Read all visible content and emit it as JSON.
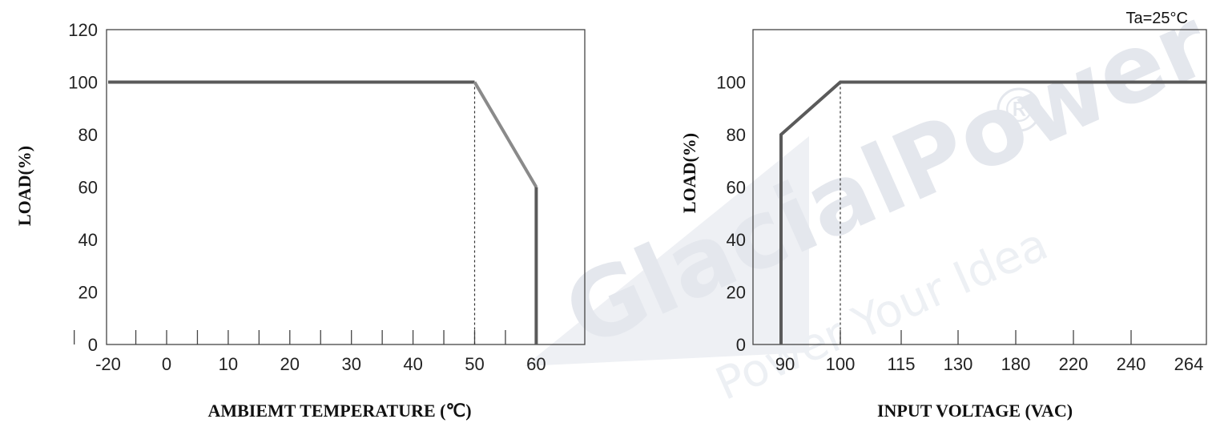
{
  "watermark": {
    "brand": "GlacialPower",
    "tagline": "Power Your Idea",
    "registered_mark": "®",
    "color": "#e6e9ef"
  },
  "chart_data": [
    {
      "type": "line",
      "title": "",
      "xlabel": "AMBIEMT TEMPERATURE (℃)",
      "ylabel": "LOAD(%)",
      "xlim": [
        -20,
        75
      ],
      "ylim": [
        0,
        120
      ],
      "x_ticks": [
        -20,
        0,
        10,
        20,
        30,
        40,
        50,
        60
      ],
      "x_tick_labels": [
        "-20",
        "0",
        "10",
        "20",
        "30",
        "40",
        "50",
        "60"
      ],
      "x_minor_ticks": [
        -15,
        -5,
        5,
        15,
        25,
        35,
        45,
        55
      ],
      "y_ticks": [
        0,
        20,
        40,
        60,
        80,
        100,
        120
      ],
      "y_tick_labels": [
        "0",
        "20",
        "40",
        "60",
        "80",
        "100",
        "120"
      ],
      "grid": false,
      "series": [
        {
          "x": [
            -20,
            50,
            60,
            60
          ],
          "y": [
            100,
            100,
            60,
            0
          ],
          "color": "#5a5a5a",
          "segment_colors": [
            "#5a5a5a",
            "#8a8a8a",
            "#5a5a5a"
          ]
        }
      ],
      "reference_lines": [
        {
          "x": 50,
          "y_from": 0,
          "y_to": 100,
          "style": "dashed"
        }
      ]
    },
    {
      "type": "line",
      "title": "",
      "xlabel": "INPUT VOLTAGE (VAC)",
      "ylabel": "LOAD(%)",
      "annotation": "Ta=25°C",
      "ylim": [
        0,
        120
      ],
      "x_tick_labels": [
        "90",
        "100",
        "115",
        "130",
        "180",
        "220",
        "240",
        "264"
      ],
      "y_ticks": [
        0,
        20,
        40,
        60,
        80,
        100
      ],
      "y_tick_labels": [
        "0",
        "20",
        "40",
        "60",
        "80",
        "100"
      ],
      "grid": false,
      "series": [
        {
          "x": [
            "90",
            "90",
            "100",
            "264"
          ],
          "y": [
            0,
            80,
            100,
            100
          ],
          "color": "#5a5a5a"
        }
      ],
      "reference_lines": [
        {
          "x": "100",
          "y_from": 0,
          "y_to": 100,
          "style": "dashed"
        }
      ]
    }
  ]
}
